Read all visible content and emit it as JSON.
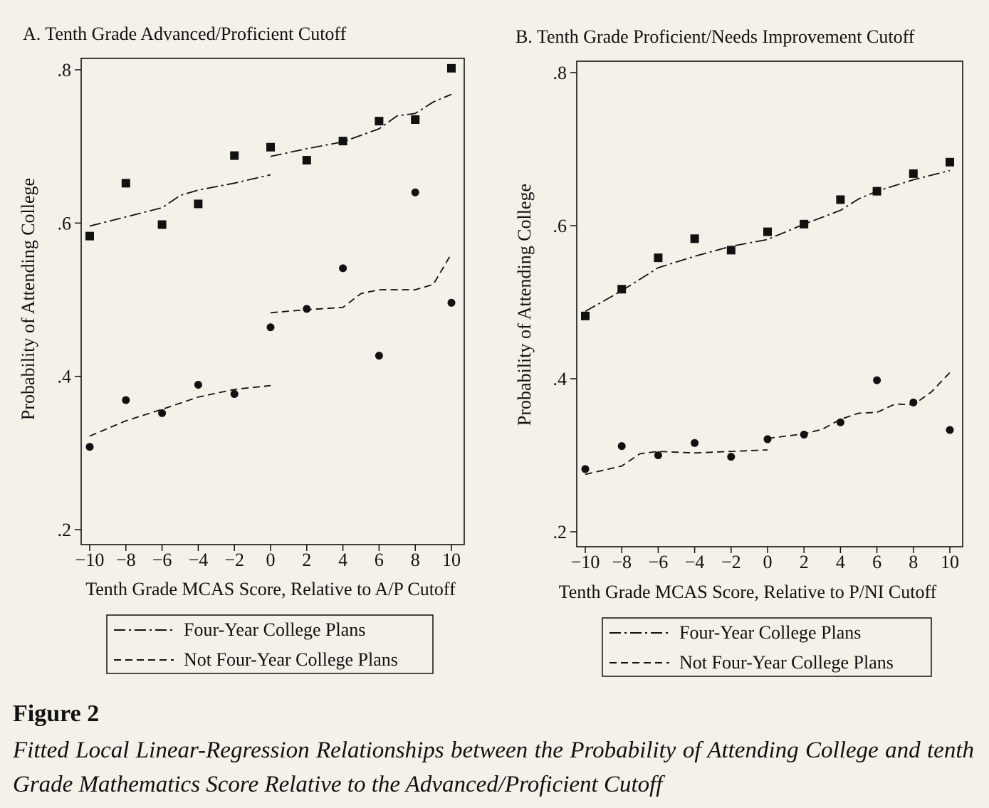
{
  "figure": {
    "label": "Figure 2",
    "caption": "Fitted Local Linear-Regression Relationships between the Probability of Attending College and tenth Grade Mathematics Score Relative to the Advanced/Proficient Cutoff"
  },
  "colors": {
    "background": "#f3f1e8",
    "ink": "#111111"
  },
  "chart_data": [
    {
      "type": "scatter",
      "title": "A. Tenth Grade Advanced/Proficient Cutoff",
      "xlabel": "Tenth Grade MCAS Score, Relative to A/P Cutoff",
      "ylabel": "Probability of Attending College",
      "xlim": [
        -10.5,
        10.5
      ],
      "ylim": [
        0.2,
        0.81
      ],
      "xticks": [
        -10,
        -8,
        -6,
        -4,
        -2,
        0,
        2,
        4,
        6,
        8,
        10
      ],
      "xtick_labels": [
        "−10",
        "−8",
        "−6",
        "−4",
        "−2",
        "0",
        "2",
        "4",
        "6",
        "8",
        "10"
      ],
      "yticks": [
        0.2,
        0.4,
        0.6,
        0.8
      ],
      "ytick_labels": [
        ".2",
        ".4",
        ".6",
        ".8"
      ],
      "grid": false,
      "legend_position": "below",
      "series": [
        {
          "name": "Four-Year College Plans",
          "marker": "square",
          "line_style": "dash-dot",
          "points": [
            [
              -10,
              0.583
            ],
            [
              -8,
              0.652
            ],
            [
              -6,
              0.598
            ],
            [
              -4,
              0.625
            ],
            [
              -2,
              0.688
            ],
            [
              0,
              0.699
            ],
            [
              2,
              0.682
            ],
            [
              4,
              0.707
            ],
            [
              6,
              0.733
            ],
            [
              8,
              0.735
            ],
            [
              10,
              0.802
            ]
          ],
          "fit_segments": [
            [
              [
                -10,
                0.596
              ],
              [
                -8,
                0.608
              ],
              [
                -6,
                0.62
              ],
              [
                -5,
                0.636
              ],
              [
                -4,
                0.643
              ],
              [
                -2,
                0.652
              ],
              [
                0,
                0.663
              ]
            ],
            [
              [
                0,
                0.687
              ],
              [
                2,
                0.697
              ],
              [
                4,
                0.706
              ],
              [
                6,
                0.723
              ],
              [
                7,
                0.74
              ],
              [
                8,
                0.743
              ],
              [
                9,
                0.758
              ],
              [
                10,
                0.768
              ]
            ]
          ]
        },
        {
          "name": "Not Four-Year College Plans",
          "marker": "circle",
          "line_style": "dashed",
          "points": [
            [
              -10,
              0.308
            ],
            [
              -8,
              0.369
            ],
            [
              -6,
              0.352
            ],
            [
              -4,
              0.389
            ],
            [
              -2,
              0.377
            ],
            [
              0,
              0.464
            ],
            [
              2,
              0.488
            ],
            [
              4,
              0.541
            ],
            [
              6,
              0.427
            ],
            [
              8,
              0.64
            ],
            [
              10,
              0.496
            ]
          ],
          "fit_segments": [
            [
              [
                -10,
                0.322
              ],
              [
                -8,
                0.342
              ],
              [
                -6,
                0.357
              ],
              [
                -4,
                0.373
              ],
              [
                -2,
                0.383
              ],
              [
                0,
                0.388
              ]
            ],
            [
              [
                0,
                0.483
              ],
              [
                2,
                0.487
              ],
              [
                4,
                0.49
              ],
              [
                5,
                0.508
              ],
              [
                6,
                0.513
              ],
              [
                8,
                0.513
              ],
              [
                9,
                0.52
              ],
              [
                10,
                0.56
              ]
            ]
          ]
        }
      ]
    },
    {
      "type": "scatter",
      "title": "B. Tenth Grade Proficient/Needs Improvement Cutoff",
      "xlabel": "Tenth Grade MCAS Score, Relative to P/NI Cutoff",
      "ylabel": "Probability of Attending College",
      "xlim": [
        -10.5,
        10.5
      ],
      "ylim": [
        0.2,
        0.81
      ],
      "xticks": [
        -10,
        -8,
        -6,
        -4,
        -2,
        0,
        2,
        4,
        6,
        8,
        10
      ],
      "xtick_labels": [
        "−10",
        "−8",
        "−6",
        "−4",
        "−2",
        "0",
        "2",
        "4",
        "6",
        "8",
        "10"
      ],
      "yticks": [
        0.2,
        0.4,
        0.6,
        0.8
      ],
      "ytick_labels": [
        ".2",
        ".4",
        ".6",
        ".8"
      ],
      "grid": false,
      "legend_position": "below",
      "series": [
        {
          "name": "Four-Year College Plans",
          "marker": "square",
          "line_style": "dash-dot",
          "points": [
            [
              -10,
              0.482
            ],
            [
              -8,
              0.517
            ],
            [
              -6,
              0.558
            ],
            [
              -4,
              0.583
            ],
            [
              -2,
              0.568
            ],
            [
              0,
              0.592
            ],
            [
              2,
              0.602
            ],
            [
              4,
              0.634
            ],
            [
              6,
              0.645
            ],
            [
              8,
              0.668
            ],
            [
              10,
              0.683
            ]
          ],
          "fit_segments": [
            [
              [
                -10,
                0.488
              ],
              [
                -8,
                0.515
              ],
              [
                -7,
                0.53
              ],
              [
                -6,
                0.545
              ],
              [
                -4,
                0.56
              ],
              [
                -2,
                0.573
              ],
              [
                0,
                0.582
              ],
              [
                2,
                0.602
              ],
              [
                4,
                0.62
              ],
              [
                5,
                0.635
              ],
              [
                6,
                0.645
              ],
              [
                8,
                0.66
              ],
              [
                10,
                0.672
              ]
            ]
          ]
        },
        {
          "name": "Not Four-Year College Plans",
          "marker": "circle",
          "line_style": "dashed",
          "points": [
            [
              -10,
              0.282
            ],
            [
              -8,
              0.312
            ],
            [
              -6,
              0.3
            ],
            [
              -4,
              0.316
            ],
            [
              -2,
              0.298
            ],
            [
              0,
              0.321
            ],
            [
              2,
              0.327
            ],
            [
              4,
              0.343
            ],
            [
              6,
              0.398
            ],
            [
              8,
              0.369
            ],
            [
              10,
              0.333
            ]
          ],
          "fit_segments": [
            [
              [
                -10,
                0.275
              ],
              [
                -8,
                0.286
              ],
              [
                -7,
                0.302
              ],
              [
                -6,
                0.305
              ],
              [
                -4,
                0.303
              ],
              [
                -2,
                0.305
              ],
              [
                0,
                0.307
              ]
            ],
            [
              [
                0,
                0.322
              ],
              [
                2,
                0.328
              ],
              [
                3,
                0.334
              ],
              [
                4,
                0.347
              ],
              [
                5,
                0.355
              ],
              [
                6,
                0.356
              ],
              [
                7,
                0.367
              ],
              [
                8,
                0.366
              ],
              [
                9,
                0.383
              ],
              [
                10,
                0.408
              ]
            ]
          ]
        }
      ]
    }
  ]
}
